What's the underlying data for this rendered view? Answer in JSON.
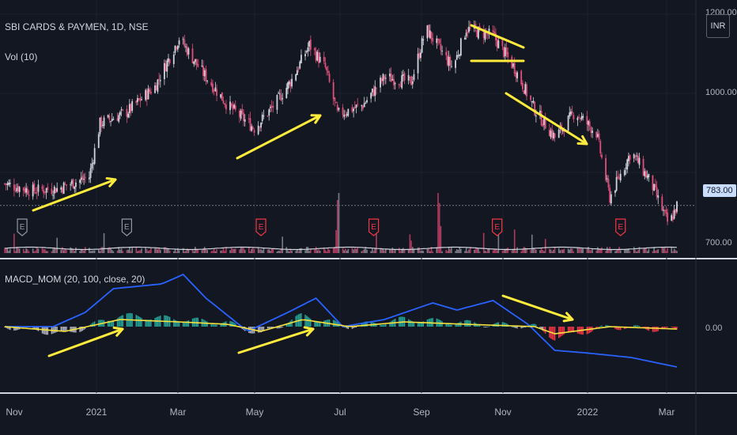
{
  "header": {
    "symbol_line": "SBI CARDS & PAYMEN, 1D, NSE",
    "volume_line": "Vol (10)",
    "currency_badge": "INR"
  },
  "price_scale": {
    "ticks": [
      "1200.00",
      "1000.00",
      "783.00",
      "700.00"
    ],
    "current_price": "783.00"
  },
  "indicator": {
    "legend": "MACD_MOM (20, 100, close, 20)",
    "zero_label": "0.00"
  },
  "time_axis": {
    "labels": [
      "Nov",
      "2021",
      "Mar",
      "May",
      "Jul",
      "Sep",
      "Nov",
      "2022",
      "Mar"
    ]
  },
  "earnings_markers": [
    "E",
    "E",
    "E",
    "E",
    "E",
    "E"
  ],
  "colors": {
    "background": "#131722",
    "candle_up": "#d1d4dc",
    "candle_down": "#e04f7a",
    "macd_line": "#2962ff",
    "signal_line": "#f7e13c",
    "hist_pos": "#26a69a",
    "hist_neg": "#f23645",
    "annotation": "#ffeb3b",
    "earnings_gray": "#9598a1",
    "earnings_red": "#f23645"
  },
  "chart_data": [
    {
      "type": "candlestick",
      "title": "SBI CARDS & PAYMEN, 1D, NSE",
      "ylabel": "",
      "ylim": [
        680,
        1210
      ],
      "x_range": [
        "2020-10-26",
        "2022-03-11"
      ],
      "current_price": 783,
      "close_path": [
        [
          "2020-10-26",
          830
        ],
        [
          "2020-11-15",
          815
        ],
        [
          "2020-12-05",
          820
        ],
        [
          "2020-12-28",
          845
        ],
        [
          "2021-01-05",
          960
        ],
        [
          "2021-01-25",
          985
        ],
        [
          "2021-02-15",
          1040
        ],
        [
          "2021-03-05",
          1145
        ],
        [
          "2021-03-20",
          1080
        ],
        [
          "2021-04-10",
          1000
        ],
        [
          "2021-04-30",
          950
        ],
        [
          "2021-05-15",
          1000
        ],
        [
          "2021-05-28",
          1055
        ],
        [
          "2021-06-10",
          1130
        ],
        [
          "2021-06-22",
          1080
        ],
        [
          "2021-07-01",
          980
        ],
        [
          "2021-07-20",
          1000
        ],
        [
          "2021-08-05",
          1060
        ],
        [
          "2021-08-25",
          1050
        ],
        [
          "2021-09-05",
          1165
        ],
        [
          "2021-09-25",
          1080
        ],
        [
          "2021-10-05",
          1165
        ],
        [
          "2021-10-25",
          1150
        ],
        [
          "2021-11-10",
          1080
        ],
        [
          "2021-11-25",
          990
        ],
        [
          "2021-12-10",
          930
        ],
        [
          "2021-12-25",
          985
        ],
        [
          "2022-01-10",
          940
        ],
        [
          "2022-01-20",
          800
        ],
        [
          "2022-02-05",
          900
        ],
        [
          "2022-02-20",
          830
        ],
        [
          "2022-03-05",
          740
        ],
        [
          "2022-03-11",
          783
        ]
      ],
      "volume_spikes": [
        [
          "2021-07-01",
          "high"
        ],
        [
          "2021-09-15",
          "high"
        ],
        [
          "2021-10-30",
          "medium"
        ]
      ],
      "earnings_dates": [
        "2020-11-08",
        "2021-01-25",
        "2021-05-05",
        "2021-07-28",
        "2021-10-28",
        "2022-01-28"
      ]
    },
    {
      "type": "line",
      "title": "MACD_MOM (20, 100, close, 20)",
      "zero_line": 0,
      "series": [
        {
          "values_shape": [
            [
              "2020-10-26",
              0.0
            ],
            [
              "2020-12-01",
              0.0
            ],
            [
              "2020-12-25",
              0.3
            ],
            [
              "2021-01-15",
              0.8
            ],
            [
              "2021-02-20",
              0.9
            ],
            [
              "2021-03-08",
              1.1
            ],
            [
              "2021-03-25",
              0.6
            ],
            [
              "2021-04-25",
              -0.1
            ],
            [
              "2021-05-25",
              0.3
            ],
            [
              "2021-06-15",
              0.6
            ],
            [
              "2021-07-05",
              0.0
            ],
            [
              "2021-08-05",
              0.15
            ],
            [
              "2021-09-10",
              0.5
            ],
            [
              "2021-09-28",
              0.35
            ],
            [
              "2021-10-25",
              0.55
            ],
            [
              "2021-11-20",
              0.05
            ],
            [
              "2021-12-10",
              -0.5
            ],
            [
              "2022-01-01",
              -0.55
            ],
            [
              "2022-02-05",
              -0.65
            ],
            [
              "2022-03-11",
              -0.85
            ]
          ]
        },
        {
          "values_shape": [
            [
              "2020-10-26",
              0.0
            ],
            [
              "2020-12-10",
              -0.1
            ],
            [
              "2021-01-20",
              0.15
            ],
            [
              "2021-03-05",
              0.1
            ],
            [
              "2021-04-10",
              0.05
            ],
            [
              "2021-05-05",
              -0.1
            ],
            [
              "2021-06-05",
              0.15
            ],
            [
              "2021-07-10",
              0.0
            ],
            [
              "2021-08-20",
              0.1
            ],
            [
              "2021-10-05",
              0.05
            ],
            [
              "2021-11-25",
              0.0
            ],
            [
              "2021-12-10",
              -0.15
            ],
            [
              "2022-01-20",
              0.0
            ],
            [
              "2022-03-11",
              -0.05
            ]
          ]
        }
      ]
    }
  ]
}
